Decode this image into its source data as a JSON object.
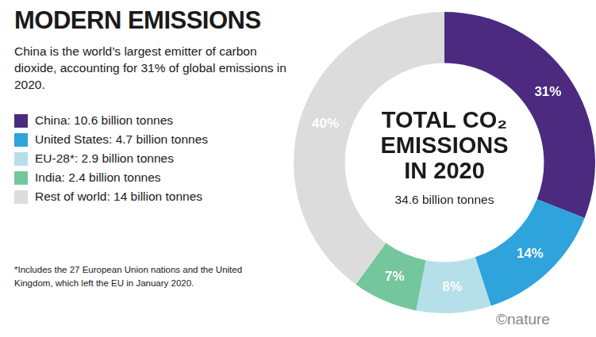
{
  "chart_data": {
    "type": "doughnut",
    "title": "MODERN EMISSIONS",
    "subtitle": "China is the world’s largest emitter of carbon dioxide, accounting for 31% of global emissions in 2020.",
    "categories": [
      "China: 10.6 billion tonnes",
      "United States: 4.7 billion tonnes",
      "EU-28*: 2.9 billion tonnes",
      "India: 2.4 billion tonnes",
      "Rest of world: 14 billion tonnes"
    ],
    "values": [
      31,
      14,
      8,
      7,
      40
    ],
    "value_labels": [
      "31%",
      "14%",
      "8%",
      "7%",
      "40%"
    ],
    "colors": [
      "#4b2a80",
      "#2ea3dc",
      "#b5e0ea",
      "#74c69d",
      "#dcdcdc"
    ],
    "data_labels": true,
    "legend": "left",
    "center_title": [
      "TOTAL CO₂",
      "EMISSIONS",
      "IN 2020"
    ],
    "center_subtitle": "34.6 billion tonnes",
    "footnote": "*Includes the 27 European Union nations and the United Kingdom, which left the EU in January 2020.",
    "source": "©nature"
  }
}
